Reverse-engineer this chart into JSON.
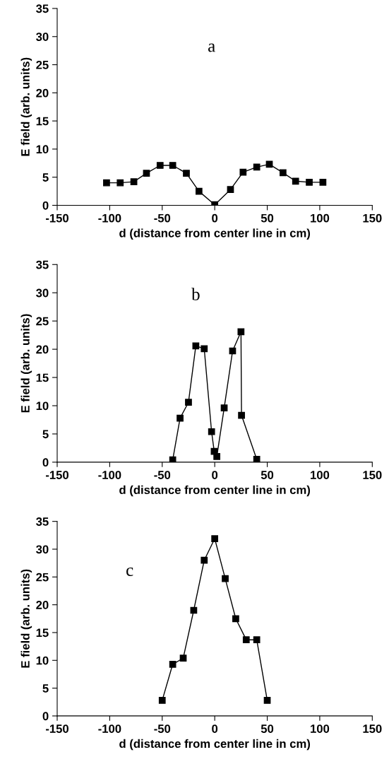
{
  "chart_data": [
    {
      "type": "line",
      "annotations": [
        "a"
      ],
      "xlabel": "d (distance from center line in cm)",
      "ylabel": "E field (arb. units)",
      "x": [
        -103,
        -90,
        -77,
        -65,
        -52,
        -40,
        -27,
        -15,
        0,
        15,
        27,
        40,
        52,
        65,
        77,
        90,
        103
      ],
      "series": [
        {
          "color": "#000000",
          "values": [
            4,
            4,
            4.2,
            5.7,
            7.1,
            7.1,
            5.7,
            2.5,
            0.1,
            2.8,
            5.9,
            6.8,
            7.3,
            5.8,
            4.3,
            4.1,
            4.1
          ]
        }
      ],
      "xlim": [
        -150,
        150
      ],
      "xticks": [
        -150,
        -100,
        -50,
        0,
        50,
        100,
        150
      ],
      "ylim": [
        0,
        35
      ],
      "yticks": [
        0,
        5,
        10,
        15,
        20,
        25,
        30,
        35
      ],
      "marker": "square",
      "line_style": "solid",
      "grid": false,
      "legend": false
    },
    {
      "type": "line",
      "annotations": [
        "b"
      ],
      "xlabel": "d (distance from center line in cm)",
      "ylabel": "E field (arb. units)",
      "x": [
        -40,
        -33,
        -25,
        -18,
        -10,
        -3,
        -0.5,
        2,
        9,
        17,
        25,
        25.5,
        40
      ],
      "series": [
        {
          "color": "#000000",
          "values": [
            0.4,
            7.8,
            10.6,
            20.6,
            20.1,
            5.4,
            1.9,
            1,
            9.6,
            19.7,
            23.1,
            8.3,
            0.5
          ]
        }
      ],
      "xlim": [
        -150,
        150
      ],
      "xticks": [
        -150,
        -100,
        -50,
        0,
        50,
        100,
        150
      ],
      "ylim": [
        0,
        35
      ],
      "yticks": [
        0,
        5,
        10,
        15,
        20,
        25,
        30,
        35
      ],
      "marker": "square",
      "line_style": "solid",
      "grid": false,
      "legend": false
    },
    {
      "type": "line",
      "annotations": [
        "c"
      ],
      "xlabel": "d (distance from center line in cm)",
      "ylabel": "E field (arb. units)",
      "x": [
        -50,
        -40,
        -30,
        -20,
        -10,
        0,
        10,
        20,
        30,
        40,
        50
      ],
      "series": [
        {
          "color": "#000000",
          "values": [
            2.8,
            9.3,
            10.4,
            19,
            28,
            31.9,
            24.7,
            17.5,
            13.7,
            13.7,
            2.8
          ]
        }
      ],
      "xlim": [
        -150,
        150
      ],
      "xticks": [
        -150,
        -100,
        -50,
        0,
        50,
        100,
        150
      ],
      "ylim": [
        0,
        35
      ],
      "yticks": [
        0,
        5,
        10,
        15,
        20,
        25,
        30,
        35
      ],
      "marker": "square",
      "line_style": "solid",
      "grid": false,
      "legend": false
    }
  ]
}
